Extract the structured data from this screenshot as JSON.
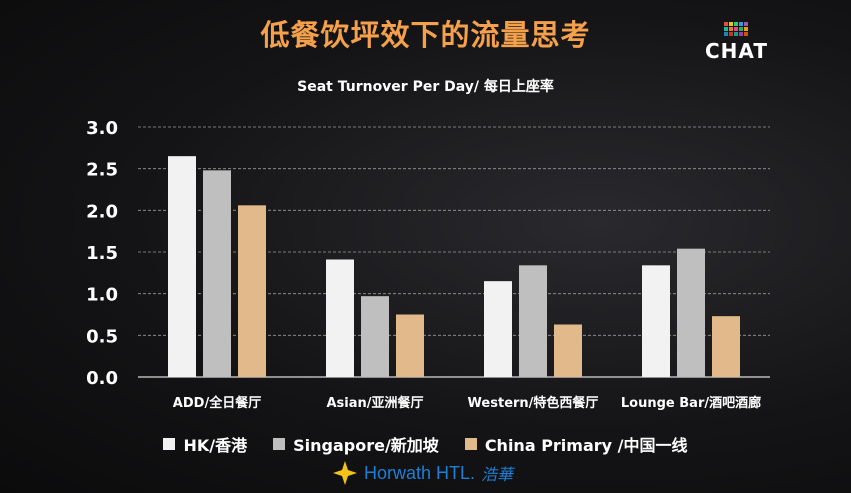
{
  "slide": {
    "title": "低餐饮坪效下的流量思考",
    "brand": "CHAT",
    "footer_name": "Horwath HTL.",
    "footer_cn": "浩華"
  },
  "colors": {
    "title": "#f5a04a",
    "hk": "#f2f2f2",
    "singapore": "#bfbfbf",
    "china": "#e2b98a",
    "logo_blue": "#1e7fd6",
    "logo_gold": "#f2c21b"
  },
  "chart_data": {
    "type": "bar",
    "title": "Seat Turnover Per Day/ 每日上座率",
    "xlabel": "",
    "ylabel": "",
    "ylim": [
      0,
      3.0
    ],
    "yticks": [
      "0.0",
      "0.5",
      "1.0",
      "1.5",
      "2.0",
      "2.5",
      "3.0"
    ],
    "grid": true,
    "legend_position": "bottom",
    "categories": [
      "ADD/全日餐厅",
      "Asian/亚洲餐厅",
      "Western/特色西餐厅",
      "Lounge Bar/酒吧酒廊"
    ],
    "series": [
      {
        "name": "HK/香港",
        "color": "#f2f2f2",
        "values": [
          2.65,
          1.41,
          1.15,
          1.34
        ]
      },
      {
        "name": "Singapore/新加坡",
        "color": "#bfbfbf",
        "values": [
          2.48,
          0.97,
          1.34,
          1.54
        ]
      },
      {
        "name": "China Primary /中国一线",
        "color": "#e2b98a",
        "values": [
          2.06,
          0.75,
          0.63,
          0.73
        ]
      }
    ]
  }
}
